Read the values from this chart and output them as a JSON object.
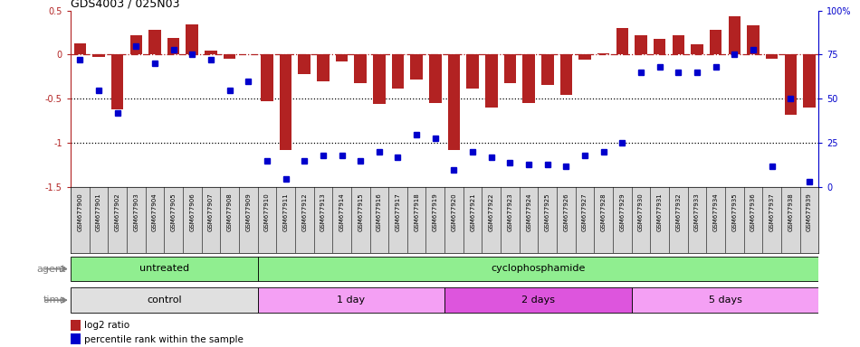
{
  "title": "GDS4003 / 025N03",
  "samples": [
    "GSM677900",
    "GSM677901",
    "GSM677902",
    "GSM677903",
    "GSM677904",
    "GSM677905",
    "GSM677906",
    "GSM677907",
    "GSM677908",
    "GSM677909",
    "GSM677910",
    "GSM677911",
    "GSM677912",
    "GSM677913",
    "GSM677914",
    "GSM677915",
    "GSM677916",
    "GSM677917",
    "GSM677918",
    "GSM677919",
    "GSM677920",
    "GSM677921",
    "GSM677922",
    "GSM677923",
    "GSM677924",
    "GSM677925",
    "GSM677926",
    "GSM677927",
    "GSM677928",
    "GSM677929",
    "GSM677930",
    "GSM677931",
    "GSM677932",
    "GSM677933",
    "GSM677934",
    "GSM677935",
    "GSM677936",
    "GSM677937",
    "GSM677938",
    "GSM677939"
  ],
  "log2_ratio": [
    0.13,
    -0.03,
    -0.62,
    0.22,
    0.28,
    0.19,
    0.34,
    0.05,
    -0.05,
    0.0,
    -0.53,
    -1.08,
    -0.22,
    -0.3,
    -0.08,
    -0.32,
    -0.56,
    -0.38,
    -0.28,
    -0.55,
    -1.08,
    -0.38,
    -0.6,
    -0.32,
    -0.55,
    -0.34,
    -0.45,
    -0.06,
    0.02,
    0.3,
    0.22,
    0.18,
    0.22,
    0.12,
    0.28,
    0.43,
    0.33,
    -0.05,
    -0.68,
    -0.6
  ],
  "percentile": [
    72,
    55,
    42,
    80,
    70,
    78,
    75,
    72,
    55,
    60,
    15,
    5,
    15,
    18,
    18,
    15,
    20,
    17,
    30,
    28,
    10,
    20,
    17,
    14,
    13,
    13,
    12,
    18,
    20,
    25,
    65,
    68,
    65,
    65,
    68,
    75,
    78,
    12,
    50,
    3
  ],
  "ylim_left": [
    -1.5,
    0.5
  ],
  "ylim_right": [
    0,
    100
  ],
  "yticks_left": [
    0.5,
    0.0,
    -0.5,
    -1.0,
    -1.5
  ],
  "yticks_right": [
    100,
    75,
    50,
    25,
    0
  ],
  "ytick_labels_left": [
    "0.5",
    "0",
    "-0.5",
    "-1",
    "-1.5"
  ],
  "ytick_labels_right": [
    "100%",
    "75",
    "50",
    "25",
    "0"
  ],
  "hlines_dotted": [
    -0.5,
    -1.0
  ],
  "bar_color": "#b22222",
  "scatter_color": "#0000cc",
  "agent_groups": [
    {
      "label": "untreated",
      "start": 0,
      "end": 9,
      "color": "#90ee90"
    },
    {
      "label": "cyclophosphamide",
      "start": 10,
      "end": 39,
      "color": "#90ee90"
    }
  ],
  "time_groups": [
    {
      "label": "control",
      "start": 0,
      "end": 9,
      "color": "#e0e0e0"
    },
    {
      "label": "1 day",
      "start": 10,
      "end": 19,
      "color": "#f4a0f4"
    },
    {
      "label": "2 days",
      "start": 20,
      "end": 29,
      "color": "#dd55dd"
    },
    {
      "label": "5 days",
      "start": 30,
      "end": 39,
      "color": "#f4a0f4"
    }
  ],
  "legend_bar_label": "log2 ratio",
  "legend_scatter_label": "percentile rank within the sample",
  "agent_label": "agent",
  "time_label": "time",
  "background_color": "#ffffff",
  "label_box_color": "#d8d8d8"
}
